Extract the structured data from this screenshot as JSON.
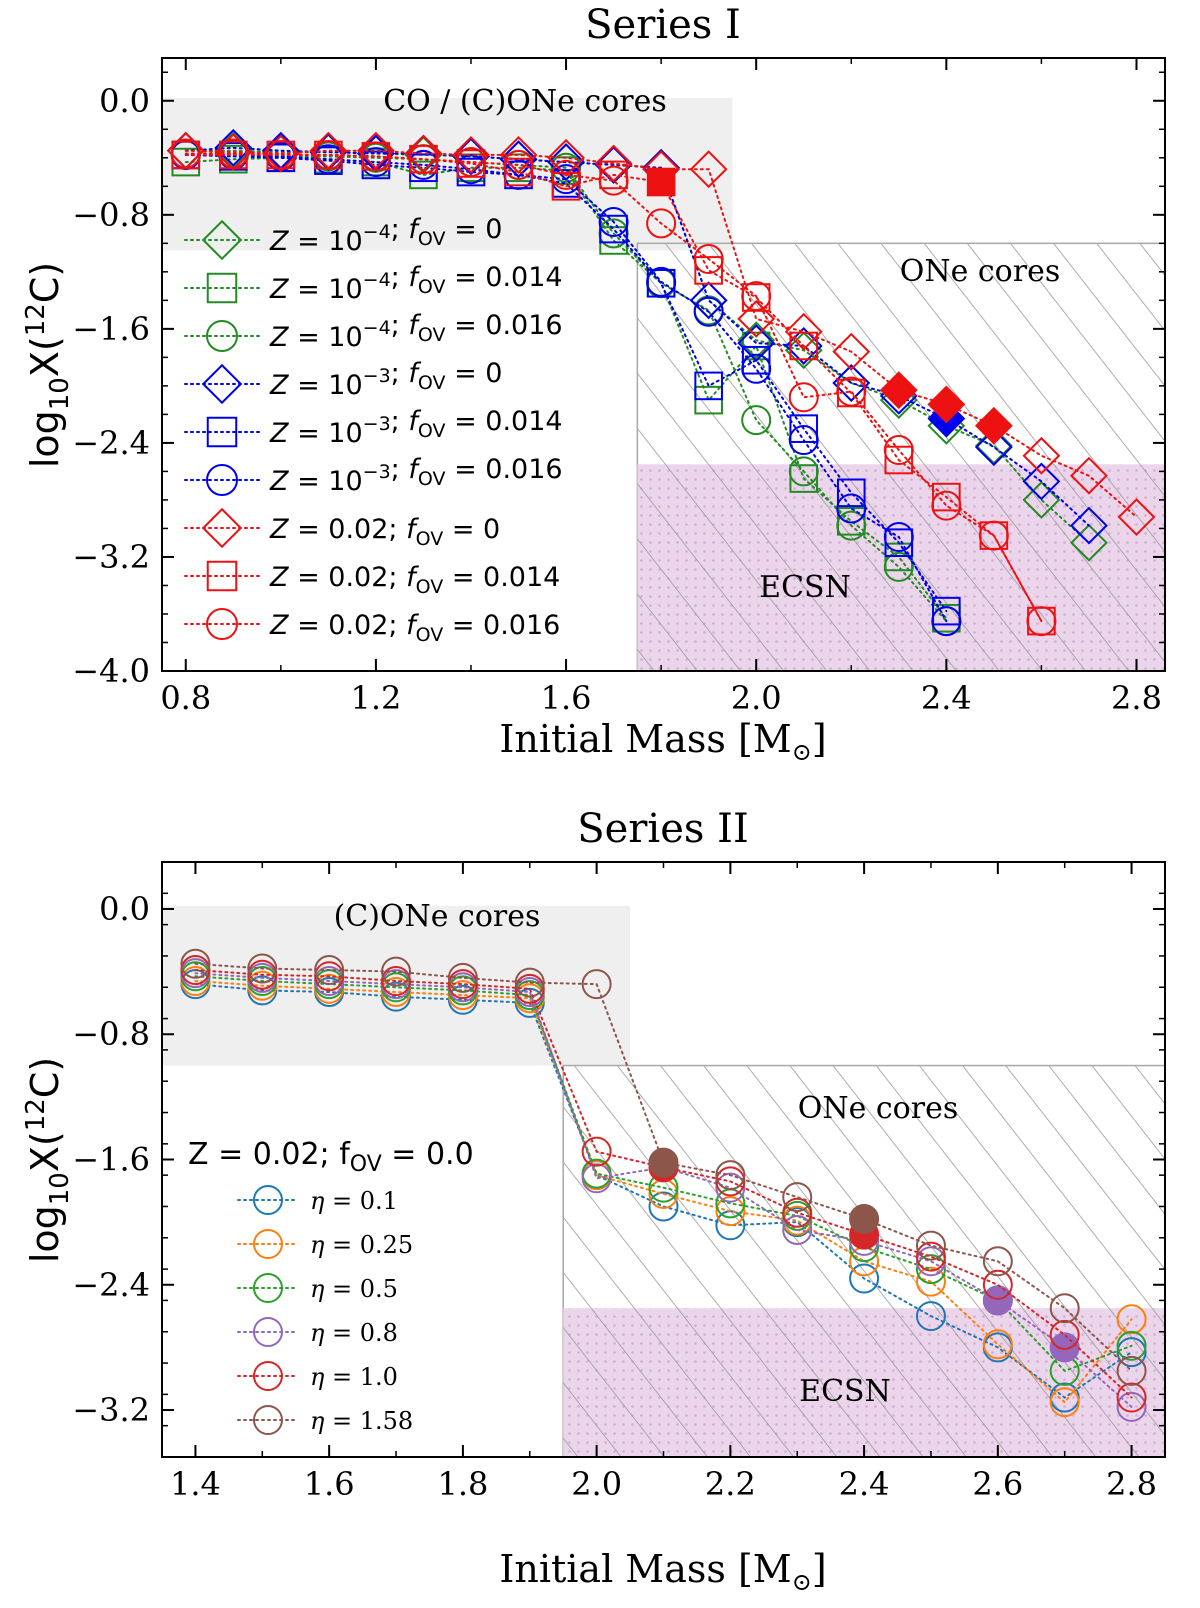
{
  "chart_data": [
    {
      "type": "line",
      "title": "Series I",
      "xlabel": "Initial Mass [M",
      "xlabel_sub": "⊙",
      "xlabel_close": "]",
      "ylabel": "log",
      "ylabel_sub": "10",
      "ylabel_x": "X(",
      "ylabel_sup": "12",
      "ylabel_end": "C)",
      "xlim": [
        0.75,
        2.86
      ],
      "ylim": [
        -4.0,
        0.3
      ],
      "xticks": [
        0.8,
        1.2,
        1.6,
        2.0,
        2.4,
        2.8
      ],
      "xtick_labels": [
        "0.8",
        "1.2",
        "1.6",
        "2.0",
        "2.4",
        "2.8"
      ],
      "yticks": [
        0.0,
        -0.8,
        -1.6,
        -2.4,
        -3.2,
        -4.0
      ],
      "ytick_labels": [
        "0.0",
        "−0.8",
        "−1.6",
        "−2.4",
        "−3.2",
        "−4.0"
      ],
      "regions": [
        {
          "label": "CO / (C)ONe cores",
          "type": "gray",
          "x": [
            0.75,
            1.95
          ],
          "y": [
            -1.05,
            0.02
          ]
        },
        {
          "label": "ONe cores",
          "type": "hatch",
          "x": [
            1.75,
            2.86
          ],
          "y": [
            -2.55,
            -1.0
          ]
        },
        {
          "label": "ECSN",
          "type": "ecsn",
          "x": [
            1.75,
            2.86
          ],
          "y": [
            -4.0,
            -2.55
          ]
        }
      ],
      "region_labels": {
        "co": "CO / (C)ONe cores",
        "one": "ONe cores",
        "ecsn": "ECSN"
      },
      "series": [
        {
          "name": "Z=1e-4; fOV=0",
          "legend_base": "Z = 10",
          "legend_exp": "−4",
          "legend_tail": "; f",
          "legend_sub": "OV",
          "legend_val": " = 0",
          "color": "#228B22",
          "marker": "diamond",
          "x": [
            0.8,
            0.9,
            1.0,
            1.1,
            1.2,
            1.3,
            1.4,
            1.5,
            1.6,
            1.7,
            1.8,
            1.9,
            2.0,
            2.1,
            2.2,
            2.3,
            2.4,
            2.5,
            2.6,
            2.7
          ],
          "y": [
            -0.35,
            -0.35,
            -0.36,
            -0.36,
            -0.37,
            -0.38,
            -0.39,
            -0.41,
            -0.43,
            -0.45,
            -0.47,
            -1.4,
            -1.68,
            -1.75,
            -1.98,
            -2.1,
            -2.28,
            -2.42,
            -2.8,
            -3.1
          ],
          "filled": []
        },
        {
          "name": "Z=1e-4; fOV=0.014",
          "legend_base": "Z = 10",
          "legend_exp": "−4",
          "legend_tail": "; f",
          "legend_sub": "OV",
          "legend_val": " = 0.014",
          "color": "#228B22",
          "marker": "square",
          "x": [
            0.8,
            0.9,
            1.0,
            1.1,
            1.2,
            1.3,
            1.4,
            1.5,
            1.6,
            1.7,
            1.8,
            1.9,
            2.0,
            2.1,
            2.2,
            2.3,
            2.4
          ],
          "y": [
            -0.43,
            -0.41,
            -0.4,
            -0.41,
            -0.43,
            -0.52,
            -0.47,
            -0.47,
            -0.49,
            -0.98,
            -1.28,
            -2.1,
            -1.72,
            -2.65,
            -2.95,
            -3.2,
            -3.63
          ],
          "filled": []
        },
        {
          "name": "Z=1e-4; fOV=0.016",
          "legend_base": "Z = 10",
          "legend_exp": "−4",
          "legend_tail": "; f",
          "legend_sub": "OV",
          "legend_val": " = 0.016",
          "color": "#228B22",
          "marker": "circle",
          "x": [
            0.8,
            0.9,
            1.0,
            1.1,
            1.2,
            1.3,
            1.4,
            1.5,
            1.6,
            1.7,
            1.8,
            1.9,
            2.0,
            2.1,
            2.2,
            2.3,
            2.4
          ],
          "y": [
            -0.38,
            -0.38,
            -0.39,
            -0.39,
            -0.4,
            -0.41,
            -0.43,
            -0.45,
            -0.47,
            -0.93,
            -1.28,
            -1.47,
            -2.24,
            -2.6,
            -2.98,
            -3.27,
            -3.65
          ],
          "filled": []
        },
        {
          "name": "Z=1e-3; fOV=0",
          "legend_base": "Z = 10",
          "legend_exp": "−3",
          "legend_tail": "; f",
          "legend_sub": "OV",
          "legend_val": " = 0",
          "color": "#0000EE",
          "marker": "diamond",
          "x": [
            0.8,
            0.9,
            1.0,
            1.1,
            1.2,
            1.3,
            1.4,
            1.5,
            1.6,
            1.7,
            1.8,
            1.9,
            2.0,
            2.1,
            2.2,
            2.3,
            2.4,
            2.5,
            2.6,
            2.7
          ],
          "y": [
            -0.35,
            -0.33,
            -0.35,
            -0.36,
            -0.37,
            -0.37,
            -0.39,
            -0.41,
            -0.43,
            -0.45,
            -0.47,
            -1.4,
            -1.7,
            -1.72,
            -1.98,
            -2.07,
            -2.23,
            -2.43,
            -2.67,
            -2.98
          ],
          "filled": [
            2.4
          ]
        },
        {
          "name": "Z=1e-3; fOV=0.014",
          "legend_base": "Z = 10",
          "legend_exp": "−3",
          "legend_tail": "; f",
          "legend_sub": "OV",
          "legend_val": " = 0.014",
          "color": "#0000EE",
          "marker": "square",
          "x": [
            0.8,
            0.9,
            1.0,
            1.1,
            1.2,
            1.3,
            1.4,
            1.5,
            1.6,
            1.7,
            1.8,
            1.9,
            2.0,
            2.1,
            2.2,
            2.3,
            2.4
          ],
          "y": [
            -0.38,
            -0.39,
            -0.4,
            -0.42,
            -0.45,
            -0.47,
            -0.5,
            -0.52,
            -0.58,
            -0.9,
            -1.28,
            -2.0,
            -1.82,
            -2.3,
            -2.75,
            -3.1,
            -3.58
          ],
          "filled": []
        },
        {
          "name": "Z=1e-3; fOV=0.016",
          "legend_base": "Z = 10",
          "legend_exp": "−3",
          "legend_tail": "; f",
          "legend_sub": "OV",
          "legend_val": " = 0.016",
          "color": "#0000EE",
          "marker": "circle",
          "x": [
            0.8,
            0.9,
            1.0,
            1.1,
            1.2,
            1.3,
            1.4,
            1.5,
            1.6,
            1.7,
            1.8,
            1.9,
            2.0,
            2.1,
            2.2,
            2.3,
            2.4
          ],
          "y": [
            -0.38,
            -0.38,
            -0.39,
            -0.41,
            -0.43,
            -0.45,
            -0.48,
            -0.52,
            -0.55,
            -0.85,
            -1.27,
            -1.48,
            -1.88,
            -2.38,
            -2.86,
            -3.06,
            -3.65
          ],
          "filled": []
        },
        {
          "name": "Z=0.02; fOV=0",
          "legend_base": "Z = 0.02",
          "legend_exp": "",
          "legend_tail": "; f",
          "legend_sub": "OV",
          "legend_val": " = 0",
          "color": "#EE1111",
          "marker": "diamond",
          "x": [
            0.8,
            0.9,
            1.0,
            1.1,
            1.2,
            1.3,
            1.4,
            1.5,
            1.6,
            1.7,
            1.8,
            1.9,
            2.0,
            2.1,
            2.2,
            2.3,
            2.4,
            2.5,
            2.6,
            2.7,
            2.8
          ],
          "y": [
            -0.35,
            -0.36,
            -0.37,
            -0.35,
            -0.35,
            -0.37,
            -0.38,
            -0.38,
            -0.4,
            -0.44,
            -0.48,
            -0.48,
            -1.53,
            -1.62,
            -1.76,
            -2.03,
            -2.13,
            -2.28,
            -2.49,
            -2.63,
            -2.92
          ],
          "filled": [
            2.3,
            2.4,
            2.5
          ]
        },
        {
          "name": "Z=0.02; fOV=0.014",
          "legend_base": "Z = 0.02",
          "legend_exp": "",
          "legend_tail": "; f",
          "legend_sub": "OV",
          "legend_val": " = 0.014",
          "color": "#EE1111",
          "marker": "square",
          "x": [
            0.8,
            0.9,
            1.0,
            1.1,
            1.2,
            1.3,
            1.4,
            1.5,
            1.6,
            1.7,
            1.8,
            1.9,
            2.0,
            2.1,
            2.2,
            2.3,
            2.4,
            2.5,
            2.6
          ],
          "y": [
            -0.38,
            -0.38,
            -0.38,
            -0.38,
            -0.39,
            -0.41,
            -0.44,
            -0.5,
            -0.6,
            -0.52,
            -0.57,
            -1.19,
            -1.38,
            -1.72,
            -2.05,
            -2.52,
            -2.78,
            -3.05,
            -3.65
          ],
          "filled": [
            1.8
          ]
        },
        {
          "name": "Z=0.02; fOV=0.016",
          "legend_base": "Z = 0.02",
          "legend_exp": "",
          "legend_tail": "; f",
          "legend_sub": "OV",
          "legend_val": " = 0.016",
          "color": "#EE1111",
          "marker": "circle",
          "x": [
            0.8,
            0.9,
            1.0,
            1.1,
            1.2,
            1.3,
            1.4,
            1.5,
            1.6,
            1.7,
            1.8,
            1.9,
            2.0,
            2.1,
            2.2,
            2.3,
            2.4,
            2.5,
            2.6
          ],
          "y": [
            -0.37,
            -0.37,
            -0.38,
            -0.38,
            -0.39,
            -0.41,
            -0.43,
            -0.45,
            -0.52,
            -0.56,
            -0.86,
            -1.11,
            -1.37,
            -2.08,
            -2.04,
            -2.45,
            -2.84,
            -3.05,
            -3.65
          ],
          "filled": []
        }
      ]
    },
    {
      "type": "line",
      "title": "Series II",
      "xlabel": "Initial Mass [M",
      "xlabel_sub": "⊙",
      "xlabel_close": "]",
      "ylabel": "log",
      "ylabel_sub": "10",
      "ylabel_x": "X(",
      "ylabel_sup": "12",
      "ylabel_end": "C)",
      "xlim": [
        1.35,
        2.85
      ],
      "ylim": [
        -3.5,
        0.3
      ],
      "xticks": [
        1.4,
        1.6,
        1.8,
        2.0,
        2.2,
        2.4,
        2.6,
        2.8
      ],
      "xtick_labels": [
        "1.4",
        "1.6",
        "1.8",
        "2.0",
        "2.2",
        "2.4",
        "2.6",
        "2.8"
      ],
      "yticks": [
        0.0,
        -0.8,
        -1.6,
        -2.4,
        -3.2
      ],
      "ytick_labels": [
        "0.0",
        "−0.8",
        "−1.6",
        "−2.4",
        "−3.2"
      ],
      "regions": [
        {
          "label": "(C)ONe cores",
          "type": "gray",
          "x": [
            1.35,
            2.05
          ],
          "y": [
            -1.0,
            0.02
          ]
        },
        {
          "label": "ONe cores",
          "type": "hatch",
          "x": [
            1.95,
            2.85
          ],
          "y": [
            -2.55,
            -1.0
          ]
        },
        {
          "label": "ECSN",
          "type": "ecsn",
          "x": [
            1.95,
            2.85
          ],
          "y": [
            -3.5,
            -2.55
          ]
        }
      ],
      "region_labels": {
        "co": "(C)ONe cores",
        "one": "ONe cores",
        "ecsn": "ECSN"
      },
      "group_label": {
        "base": "Z = 0.02; f",
        "sub": "OV",
        "val": " = 0.0"
      },
      "series": [
        {
          "name": "η = 0.1",
          "legend_greek": "η",
          "legend_val": " = 0.1",
          "color": "#1f77b4",
          "marker": "circle",
          "x": [
            1.4,
            1.5,
            1.6,
            1.7,
            1.8,
            1.9,
            2.0,
            2.1,
            2.2,
            2.3,
            2.4,
            2.5,
            2.6,
            2.7,
            2.8
          ],
          "y": [
            -0.48,
            -0.52,
            -0.53,
            -0.56,
            -0.58,
            -0.6,
            -1.7,
            -1.9,
            -2.02,
            -2.0,
            -2.36,
            -2.6,
            -2.8,
            -3.12,
            -2.83
          ],
          "filled": []
        },
        {
          "name": "η = 0.25",
          "legend_greek": "η",
          "legend_val": " = 0.25",
          "color": "#ff7f0e",
          "marker": "circle",
          "x": [
            1.4,
            1.5,
            1.6,
            1.7,
            1.8,
            1.9,
            2.0,
            2.1,
            2.2,
            2.3,
            2.4,
            2.5,
            2.6,
            2.7,
            2.8
          ],
          "y": [
            -0.46,
            -0.49,
            -0.51,
            -0.53,
            -0.55,
            -0.57,
            -1.7,
            -1.82,
            -1.93,
            -1.99,
            -2.25,
            -2.38,
            -2.78,
            -3.15,
            -2.62
          ],
          "filled": []
        },
        {
          "name": "η = 0.5",
          "legend_greek": "η",
          "legend_val": " = 0.5",
          "color": "#2ca02c",
          "marker": "circle",
          "x": [
            1.4,
            1.5,
            1.6,
            1.7,
            1.8,
            1.9,
            2.0,
            2.1,
            2.2,
            2.3,
            2.4,
            2.5,
            2.6,
            2.7,
            2.8
          ],
          "y": [
            -0.43,
            -0.46,
            -0.48,
            -0.5,
            -0.52,
            -0.55,
            -1.69,
            -1.78,
            -1.88,
            -1.96,
            -2.16,
            -2.3,
            -2.5,
            -2.95,
            -2.79
          ],
          "filled": []
        },
        {
          "name": "η = 0.8",
          "legend_greek": "η",
          "legend_val": " = 0.8",
          "color": "#9467bd",
          "marker": "circle",
          "x": [
            1.4,
            1.5,
            1.6,
            1.7,
            1.8,
            1.9,
            2.0,
            2.1,
            2.2,
            2.3,
            2.4,
            2.5,
            2.6,
            2.7,
            2.8
          ],
          "y": [
            -0.41,
            -0.44,
            -0.46,
            -0.48,
            -0.5,
            -0.53,
            -1.72,
            -1.65,
            -1.78,
            -2.05,
            -2.12,
            -2.25,
            -2.5,
            -2.8,
            -3.18
          ],
          "filled": [
            2.6,
            2.7
          ]
        },
        {
          "name": "η = 1.0",
          "legend_greek": "η",
          "legend_val": " = 1.0",
          "color": "#d62728",
          "marker": "circle",
          "x": [
            1.4,
            1.5,
            1.6,
            1.7,
            1.8,
            1.9,
            2.0,
            2.1,
            2.2,
            2.3,
            2.4,
            2.5,
            2.6,
            2.7,
            2.8
          ],
          "y": [
            -0.39,
            -0.42,
            -0.43,
            -0.46,
            -0.48,
            -0.51,
            -1.55,
            -1.65,
            -1.74,
            -1.94,
            -2.08,
            -2.22,
            -2.4,
            -2.72,
            -3.12
          ],
          "filled": [
            2.1,
            2.4
          ]
        },
        {
          "name": "η = 1.58",
          "legend_greek": "η",
          "legend_val": " = 1.58",
          "color": "#8c564b",
          "marker": "circle",
          "x": [
            1.4,
            1.5,
            1.6,
            1.7,
            1.8,
            1.9,
            2.0,
            2.1,
            2.2,
            2.3,
            2.4,
            2.5,
            2.6,
            2.7,
            2.8
          ],
          "y": [
            -0.35,
            -0.38,
            -0.39,
            -0.4,
            -0.44,
            -0.47,
            -0.48,
            -1.62,
            -1.7,
            -1.84,
            -1.98,
            -2.15,
            -2.25,
            -2.55,
            -2.95
          ],
          "filled": [
            2.1,
            2.4
          ]
        }
      ]
    }
  ]
}
